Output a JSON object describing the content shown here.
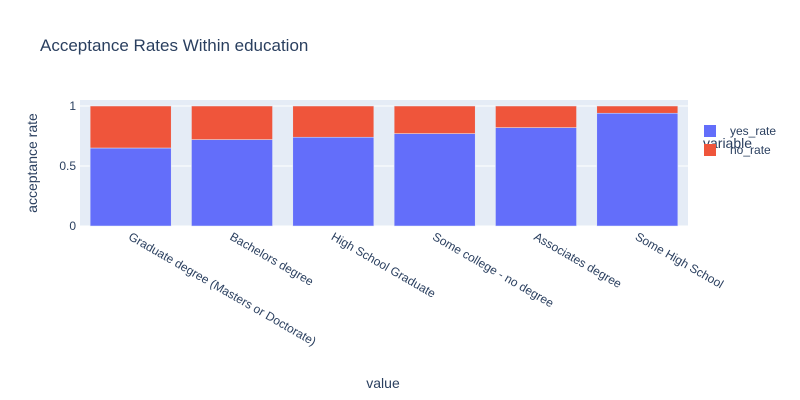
{
  "chart_data": {
    "type": "bar",
    "stacked": true,
    "title": "Acceptance Rates Within education",
    "xlabel": "value",
    "ylabel": "acceptance rate",
    "ylim": [
      0,
      1
    ],
    "yticks": [
      "0",
      "0.5",
      "1"
    ],
    "categories": [
      "Graduate degree (Masters or Doctorate)",
      "Bachelors degree",
      "High School Graduate",
      "Some college - no degree",
      "Associates degree",
      "Some High School"
    ],
    "legend": {
      "title": "variable",
      "position": "right"
    },
    "series": [
      {
        "name": "yes_rate",
        "color": "#636efa",
        "values": [
          0.65,
          0.72,
          0.74,
          0.77,
          0.82,
          0.94
        ]
      },
      {
        "name": "no_rate",
        "color": "#ef553b",
        "values": [
          0.35,
          0.28,
          0.26,
          0.23,
          0.18,
          0.06
        ]
      }
    ],
    "grid": true,
    "plot_background": "#e5ecf6"
  }
}
